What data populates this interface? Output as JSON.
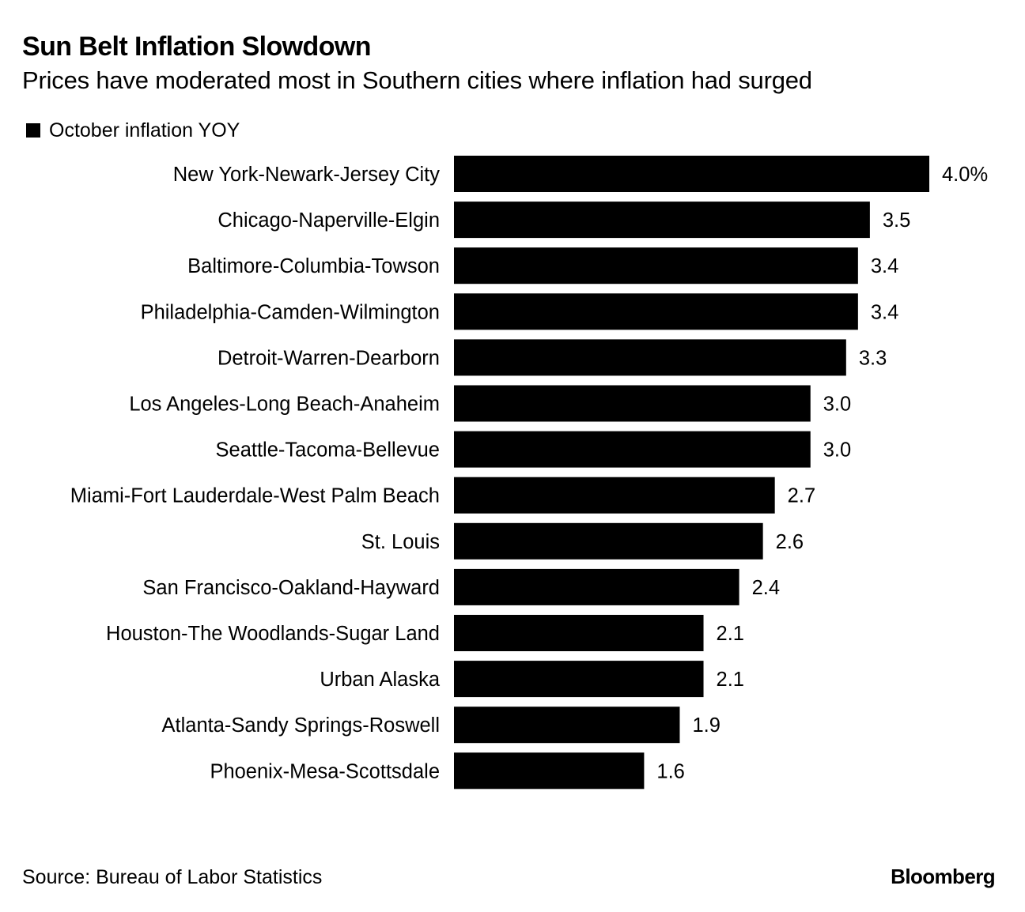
{
  "chart_data": {
    "type": "bar",
    "orientation": "horizontal",
    "title": "Sun Belt Inflation Slowdown",
    "subtitle": "Prices have moderated most in Southern cities where inflation had surged",
    "series": [
      {
        "name": "October inflation YOY",
        "values": [
          4.0,
          3.5,
          3.4,
          3.4,
          3.3,
          3.0,
          3.0,
          2.7,
          2.6,
          2.4,
          2.1,
          2.1,
          1.9,
          1.6
        ]
      }
    ],
    "categories": [
      "New York-Newark-Jersey City",
      "Chicago-Naperville-Elgin",
      "Baltimore-Columbia-Towson",
      "Philadelphia-Camden-Wilmington",
      "Detroit-Warren-Dearborn",
      "Los Angeles-Long Beach-Anaheim",
      "Seattle-Tacoma-Bellevue",
      "Miami-Fort Lauderdale-West Palm Beach",
      "St. Louis",
      "San Francisco-Oakland-Hayward",
      "Houston-The Woodlands-Sugar Land",
      "Urban Alaska",
      "Atlanta-Sandy Springs-Roswell",
      "Phoenix-Mesa-Scottsdale"
    ],
    "value_labels": [
      "4.0%",
      "3.5",
      "3.4",
      "3.4",
      "3.3",
      "3.0",
      "3.0",
      "2.7",
      "2.6",
      "2.4",
      "2.1",
      "2.1",
      "1.9",
      "1.6"
    ],
    "xlim": [
      0,
      4.0
    ],
    "xlabel": "",
    "ylabel": "",
    "grid": false,
    "legend_position": "top-left",
    "bar_color": "#000000"
  },
  "source": "Source: Bureau of Labor Statistics",
  "brand": "Bloomberg"
}
